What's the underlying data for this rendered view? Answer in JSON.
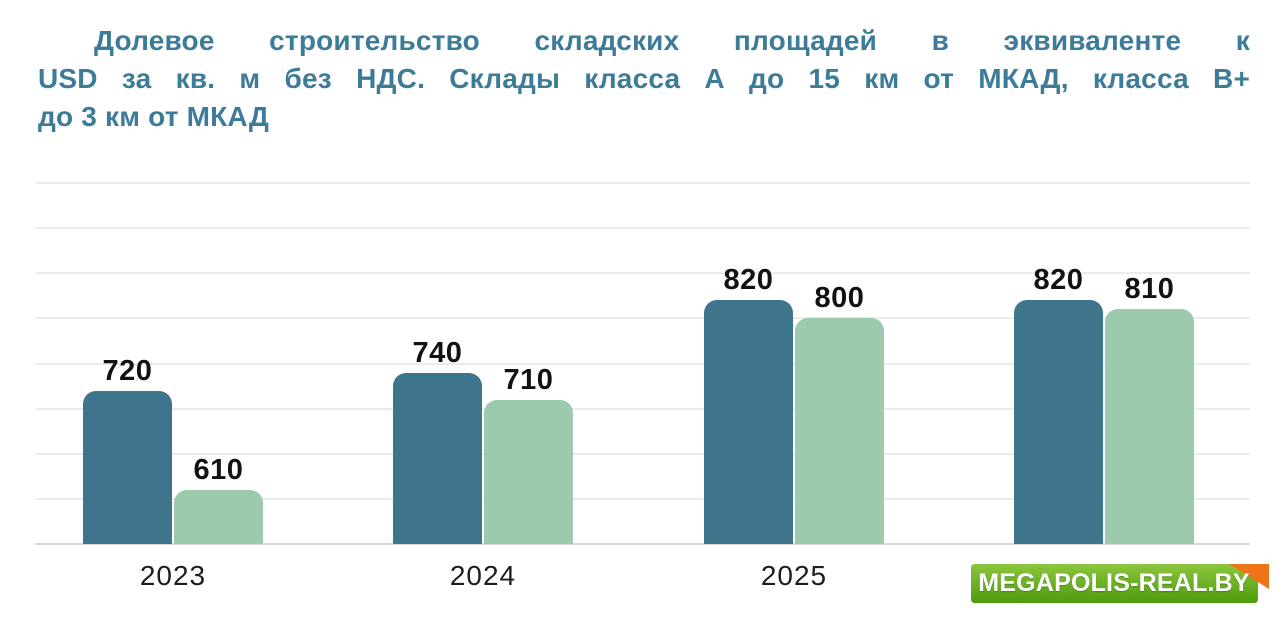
{
  "title": {
    "full_text": "Долевое строительство складских площадей в эквиваленте к USD за кв. м без НДС. Склады класса А до 15 км от МКАД, класса В+ до 3 км от МКАД",
    "lines": [
      "Долевое строительство складских площадей в эквиваленте к",
      "USD за кв. м без НДС. Склады класса А до 15 км от МКАД, класса В+",
      "до 3 км от МКАД"
    ],
    "color": "#3d7c99"
  },
  "watermark": {
    "label": "MEGAPOLIS-REAL.BY",
    "text_color": "#ffffff",
    "gradient_top": "#8cc63e",
    "gradient_bottom": "#4e9c0d",
    "fold_color": "#ee7517"
  },
  "chart_data": {
    "type": "bar",
    "title": "Долевое строительство складских площадей в эквиваленте к USD за кв. м без НДС. Склады класса А до 15 км от МКАД, класса В+ до 3 км от МКАД",
    "categories": [
      "2023",
      "2024",
      "2025",
      ""
    ],
    "series": [
      {
        "name": "series-1-dark-teal",
        "color": "#3f758c",
        "values": [
          720,
          740,
          820,
          820
        ]
      },
      {
        "name": "series-2-light-green",
        "color": "#9bcaad",
        "values": [
          610,
          710,
          800,
          810
        ]
      }
    ],
    "xlabel": "",
    "ylabel": "",
    "ylim": [
      550,
      950
    ],
    "grid_step": 50,
    "grid": true,
    "legend": false,
    "value_labels": true,
    "gridline_color": "#ebebeb",
    "baseline_color": "#d7d7d7",
    "value_label_color": "#121212",
    "category_label_color": "#1d1d1d"
  }
}
